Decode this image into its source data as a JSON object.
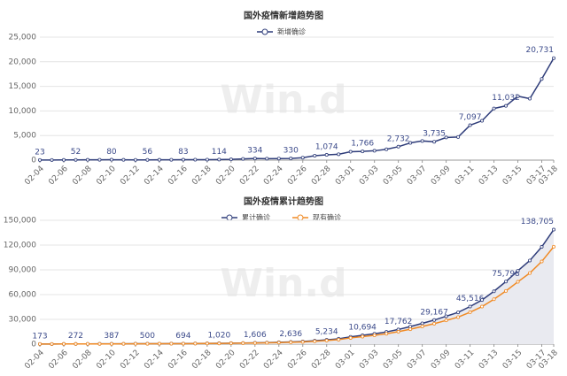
{
  "chart_data": [
    {
      "type": "line",
      "title": "国外疫情新增趋势图",
      "watermark": "Win.d",
      "categories": [
        "02-04",
        null,
        "02-06",
        null,
        "02-08",
        null,
        "02-10",
        null,
        "02-12",
        null,
        "02-14",
        null,
        "02-16",
        null,
        "02-18",
        null,
        "02-20",
        null,
        "02-22",
        null,
        "02-24",
        null,
        "02-26",
        null,
        "02-28",
        null,
        "03-01",
        null,
        "03-03",
        null,
        "03-05",
        null,
        "03-07",
        null,
        "03-09",
        null,
        "03-11",
        null,
        "03-13",
        null,
        "03-15",
        null,
        "03-17",
        "03-18"
      ],
      "series": [
        {
          "name": "新增确诊",
          "color": "#2f3d7a",
          "fill": null,
          "values": [
            23,
            30,
            40,
            52,
            60,
            70,
            80,
            60,
            55,
            56,
            60,
            70,
            83,
            90,
            100,
            114,
            150,
            250,
            334,
            300,
            320,
            330,
            500,
            900,
            1074,
            1200,
            1700,
            1766,
            1900,
            2200,
            2732,
            3500,
            3900,
            3735,
            4600,
            4700,
            7097,
            8000,
            10500,
            11032,
            13000,
            12500,
            16500,
            20731
          ],
          "value_labels": [
            "23",
            null,
            null,
            "52",
            null,
            null,
            "80",
            null,
            null,
            "56",
            null,
            null,
            "83",
            null,
            null,
            "114",
            null,
            null,
            "334",
            null,
            null,
            "330",
            null,
            null,
            "1,074",
            null,
            null,
            "1,766",
            null,
            null,
            "2,732",
            null,
            null,
            "3,735",
            null,
            null,
            "7,097",
            null,
            null,
            "11,032",
            null,
            null,
            null,
            "20,731"
          ]
        }
      ],
      "ylim": [
        0,
        25000
      ],
      "yticks": [
        0,
        {
          "value": 5000,
          "label": "5,000"
        },
        {
          "value": 10000,
          "label": "10,000"
        },
        {
          "value": 15000,
          "label": "15,000"
        },
        {
          "value": 20000,
          "label": "20,000"
        },
        {
          "value": 25000,
          "label": "25,000"
        }
      ],
      "grid": true
    },
    {
      "type": "line",
      "title": "国外疫情累计趋势图",
      "watermark": "Win.d",
      "categories": [
        "02-04",
        null,
        "02-06",
        null,
        "02-08",
        null,
        "02-10",
        null,
        "02-12",
        null,
        "02-14",
        null,
        "02-16",
        null,
        "02-18",
        null,
        "02-20",
        null,
        "02-22",
        null,
        "02-24",
        null,
        "02-26",
        null,
        "02-28",
        null,
        "03-01",
        null,
        "03-03",
        null,
        "03-05",
        null,
        "03-07",
        null,
        "03-09",
        null,
        "03-11",
        null,
        "03-13",
        null,
        "03-15",
        null,
        "03-17",
        "03-18"
      ],
      "series": [
        {
          "name": "累计确诊",
          "color": "#2f3d7a",
          "fill": "#e9eaf0",
          "values": [
            173,
            200,
            240,
            272,
            310,
            350,
            387,
            430,
            470,
            500,
            560,
            620,
            694,
            780,
            900,
            1020,
            1200,
            1400,
            1606,
            1900,
            2250,
            2636,
            3200,
            4100,
            5234,
            6500,
            8900,
            10694,
            12600,
            14800,
            17762,
            21300,
            25200,
            29167,
            33800,
            38500,
            45516,
            53500,
            64000,
            75798,
            88800,
            101300,
            117800,
            138705
          ],
          "value_labels": [
            "173",
            null,
            null,
            "272",
            null,
            null,
            "387",
            null,
            null,
            "500",
            null,
            null,
            "694",
            null,
            null,
            "1,020",
            null,
            null,
            "1,606",
            null,
            null,
            "2,636",
            null,
            null,
            "5,234",
            null,
            null,
            "10,694",
            null,
            null,
            "17,762",
            null,
            null,
            "29,167",
            null,
            null,
            "45,516",
            null,
            null,
            "75,798",
            null,
            null,
            null,
            "138,705"
          ]
        },
        {
          "name": "现有确诊",
          "color": "#f08a24",
          "fill": null,
          "values": [
            147,
            170,
            204,
            231,
            264,
            298,
            329,
            366,
            400,
            425,
            476,
            527,
            590,
            663,
            765,
            867,
            1020,
            1190,
            1365,
            1615,
            1913,
            2241,
            2720,
            3485,
            4449,
            5525,
            7565,
            9090,
            10710,
            12580,
            15098,
            18105,
            21420,
            24792,
            28730,
            32725,
            38689,
            45475,
            54400,
            64428,
            75480,
            86105,
            100130,
            118000
          ]
        }
      ],
      "ylim": [
        0,
        150000
      ],
      "yticks": [
        0,
        {
          "value": 30000,
          "label": "30,000"
        },
        {
          "value": 60000,
          "label": "60,000"
        },
        {
          "value": 90000,
          "label": "90,000"
        },
        {
          "value": 120000,
          "label": "120,000"
        },
        {
          "value": 150000,
          "label": "150,000"
        }
      ],
      "grid": true
    }
  ]
}
